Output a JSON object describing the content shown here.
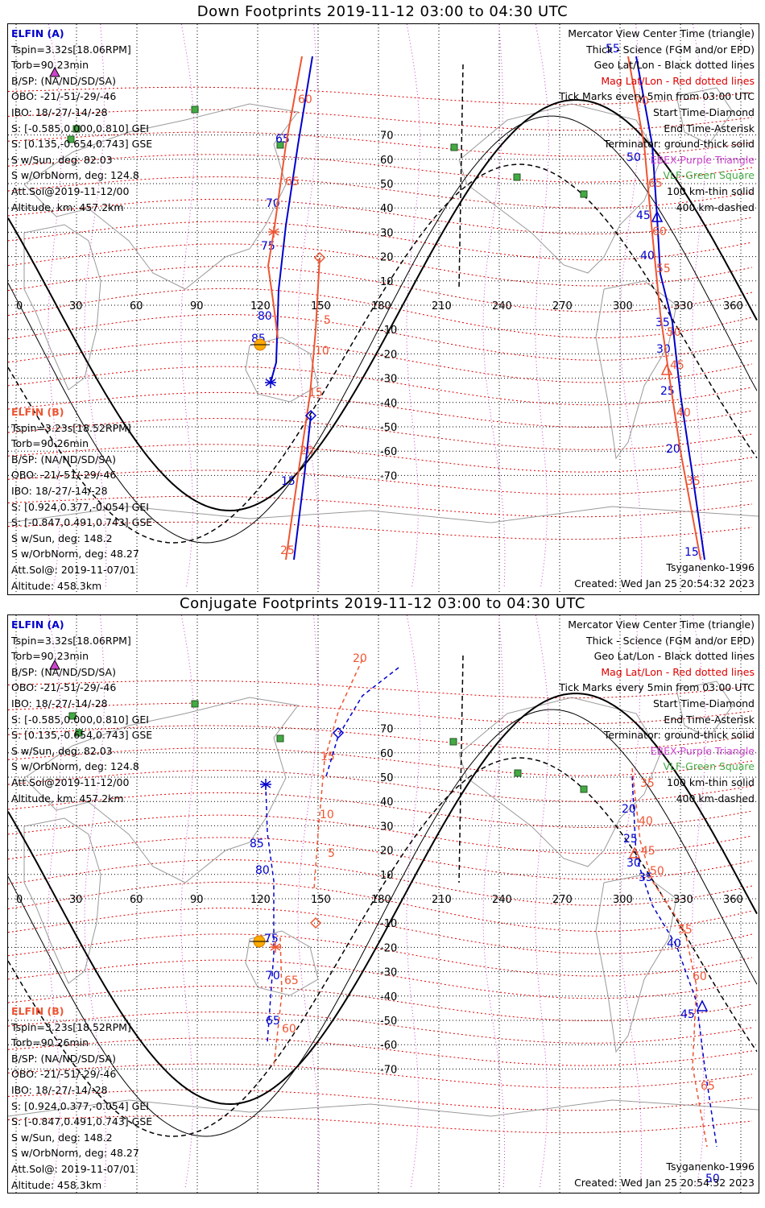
{
  "top_title": "Down Footprints 2019-11-12 03:00 to 04:30 UTC",
  "bottom_title": "Conjugate Footprints 2019-11-12 03:00 to 04:30 UTC",
  "colors": {
    "elfin_a": "#0000cc",
    "elfin_b": "#ee5533",
    "mag_grid": "#dd0000",
    "geo_grid": "#000000",
    "ebex": "#cc44cc",
    "vlf": "#44aa44",
    "sun": "#ffaa00"
  },
  "elfin_a": {
    "label": "ELFIN (A)",
    "lines": [
      "Tspin=3.32s[18.06RPM]",
      "Torb=90.23min",
      "B/SP: (NA/ND/SD/SA)",
      "OBO: -21/-51/-29/-46",
      "IBO: 18/-27/-14/-28",
      "S: [-0.585,0.000,0.810] GEI",
      "S: [0.135,-0.654,0.743] GSE",
      "S w/Sun, deg: 82.03",
      "S w/OrbNorm, deg: 124.8",
      "Att.Sol@2019-11-12/00",
      "Altitude, km: 457.2km"
    ]
  },
  "elfin_b": {
    "label": "ELFIN (B)",
    "lines": [
      "Tspin=3.23s[18.52RPM]",
      "Torb=90.26min",
      "B/SP: (NA/ND/SD/SA)",
      "OBO: -21/-51/-29/-46",
      "IBO: 18/-27/-14/-28",
      "S: [0.924,0.377,-0.054] GEI",
      "S: [-0.847,0.491,0.743] GSE",
      "S w/Sun, deg: 148.2",
      "S w/OrbNorm, deg: 48.27",
      "Att.Sol@: 2019-11-07/01",
      "Altitude: 458.3km"
    ]
  },
  "legend": [
    {
      "text": "Mercator View Center Time (triangle)",
      "color": "#000000"
    },
    {
      "text": "Thick - Science (FGM and/or EPD)",
      "color": "#000000"
    },
    {
      "text": "Geo Lat/Lon - Black dotted lines",
      "color": "#000000"
    },
    {
      "text": "Mag Lat/Lon - Red dotted lines",
      "color": "#dd0000"
    },
    {
      "text": "Tick Marks every 5min from 03:00 UTC",
      "color": "#000000"
    },
    {
      "text": "Start Time-Diamond",
      "color": "#000000"
    },
    {
      "text": "End Time-Asterisk",
      "color": "#000000"
    },
    {
      "text": "Terminator: ground-thick solid",
      "color": "#000000"
    },
    {
      "text": "EBEX-Purple Triangle",
      "color": "#cc44cc"
    },
    {
      "text": "VLF-Green Square",
      "color": "#44aa44"
    },
    {
      "text": "100 km-thin solid",
      "color": "#000000"
    },
    {
      "text": "400 km-dashed",
      "color": "#000000"
    }
  ],
  "model_label": "Tsyganenko-1996",
  "created_label": "Created: Wed Jan 25 20:54:32 2023",
  "lon_ticks": [
    "0",
    "30",
    "60",
    "90",
    "120",
    "150",
    "180",
    "210",
    "240",
    "270",
    "300",
    "330",
    "360"
  ],
  "lat_ticks": [
    "70",
    "60",
    "50",
    "40",
    "30",
    "20",
    "10",
    "-10",
    "-20",
    "-30",
    "-40",
    "-50",
    "-60",
    "-70"
  ],
  "down_tick_labels": {
    "a": [
      "65",
      "70",
      "75",
      "80",
      "85",
      "50",
      "45",
      "40",
      "35",
      "30",
      "25",
      "20",
      "15",
      "55"
    ],
    "b": [
      "60",
      "65",
      "5",
      "10",
      "15",
      "20",
      "25",
      "70",
      "65",
      "60",
      "55",
      "50",
      "45",
      "40",
      "35"
    ]
  },
  "conj_tick_labels": {
    "a": [
      "85",
      "80",
      "75",
      "70",
      "65",
      "20",
      "25",
      "30",
      "35",
      "40",
      "45",
      "50"
    ],
    "b": [
      "20",
      "15",
      "10",
      "5",
      "65",
      "60",
      "35",
      "40",
      "45",
      "50",
      "55",
      "60",
      "65"
    ]
  }
}
